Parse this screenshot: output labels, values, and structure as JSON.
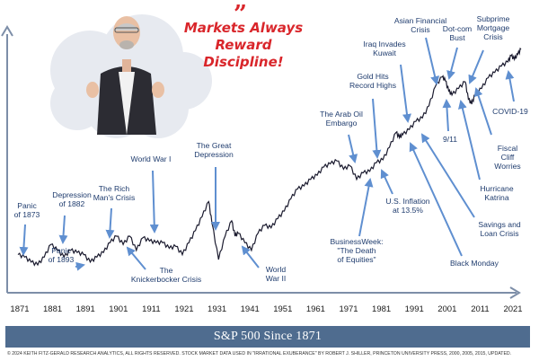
{
  "chart_data": {
    "type": "line",
    "title": "S&P 500 Since 1871",
    "yscale": "log",
    "x_ticks": [
      "1871",
      "1881",
      "1891",
      "1901",
      "1911",
      "1921",
      "1931",
      "1941",
      "1951",
      "1961",
      "1971",
      "1981",
      "1991",
      "2001",
      "2011",
      "2021"
    ],
    "series": [
      {
        "x": [
          1871,
          1873,
          1875,
          1877,
          1879,
          1881,
          1883,
          1885,
          1887,
          1889,
          1891,
          1893,
          1895,
          1897,
          1899,
          1901,
          1903,
          1905,
          1907,
          1909,
          1911,
          1913,
          1915,
          1917,
          1919,
          1921,
          1923,
          1925,
          1927,
          1929,
          1930,
          1932,
          1934,
          1936,
          1937,
          1938,
          1940,
          1942,
          1944,
          1946,
          1948,
          1950,
          1952,
          1954,
          1956,
          1958,
          1960,
          1962,
          1964,
          1966,
          1968,
          1970,
          1972,
          1974,
          1976,
          1978,
          1980,
          1982,
          1984,
          1986,
          1987,
          1988,
          1990,
          1992,
          1994,
          1996,
          1998,
          2000,
          2001,
          2002,
          2003,
          2005,
          2007,
          2008,
          2009,
          2010,
          2012,
          2014,
          2016,
          2018,
          2020,
          2021,
          2022,
          2023,
          2024
        ],
        "values": [
          1.0,
          0.95,
          0.85,
          0.8,
          0.95,
          1.25,
          1.1,
          0.95,
          1.1,
          1.05,
          1.0,
          0.85,
          0.95,
          1.05,
          1.3,
          1.5,
          1.25,
          1.5,
          1.1,
          1.45,
          1.35,
          1.3,
          1.3,
          1.15,
          1.2,
          1.0,
          1.3,
          1.7,
          2.3,
          3.2,
          2.0,
          0.9,
          1.5,
          2.1,
          1.5,
          1.6,
          1.3,
          1.1,
          1.6,
          1.9,
          1.8,
          2.2,
          2.6,
          3.4,
          4.2,
          4.5,
          5.2,
          5.7,
          6.8,
          7.3,
          7.8,
          6.5,
          7.0,
          5.2,
          6.0,
          6.2,
          7.5,
          8.0,
          10.5,
          14.5,
          13.0,
          13.8,
          15.5,
          18.5,
          20.0,
          26.0,
          40.0,
          49.0,
          45.0,
          36.0,
          33.0,
          38.0,
          44.0,
          30.0,
          27.0,
          33.0,
          38.0,
          48.0,
          54.0,
          62.0,
          68.0,
          78.0,
          72.0,
          80.0,
          90.0
        ]
      }
    ],
    "annotations": [
      {
        "lines": [
          "Panic",
          "of 1873"
        ],
        "x": 1873
      },
      {
        "lines": [
          "Depression",
          "of 1882"
        ],
        "x": 1882
      },
      {
        "lines": [
          "Panic",
          "of 1893"
        ],
        "x": 1893
      },
      {
        "lines": [
          "The Rich",
          "Man's Crisis"
        ],
        "x": 1903
      },
      {
        "lines": [
          "The",
          "Knickerbocker Crisis"
        ],
        "x": 1907
      },
      {
        "lines": [
          "World War I"
        ],
        "x": 1914
      },
      {
        "lines": [
          "The Great",
          "Depression"
        ],
        "x": 1929
      },
      {
        "lines": [
          "World",
          "War II"
        ],
        "x": 1941
      },
      {
        "lines": [
          "The Arab Oil",
          "Embargo"
        ],
        "x": 1973
      },
      {
        "lines": [
          "BusinessWeek:",
          "\"The Death",
          "of Equities\""
        ],
        "x": 1979
      },
      {
        "lines": [
          "Gold Hits",
          "Record Highs"
        ],
        "x": 1980
      },
      {
        "lines": [
          "U.S. Inflation",
          "at 13.5%"
        ],
        "x": 1980
      },
      {
        "lines": [
          "Iraq Invades",
          "Kuwait"
        ],
        "x": 1990
      },
      {
        "lines": [
          "Black Monday"
        ],
        "x": 1987
      },
      {
        "lines": [
          "Savings and",
          "Loan Crisis"
        ],
        "x": 1989
      },
      {
        "lines": [
          "Asian Financial",
          "Crisis"
        ],
        "x": 1997
      },
      {
        "lines": [
          "Dot-com",
          "Bust"
        ],
        "x": 2000
      },
      {
        "lines": [
          "9/11"
        ],
        "x": 2001
      },
      {
        "lines": [
          "Hurricane",
          "Katrina"
        ],
        "x": 2005
      },
      {
        "lines": [
          "Subprime",
          "Mortgage",
          "Crisis"
        ],
        "x": 2008
      },
      {
        "lines": [
          "Fiscal",
          "Cliff",
          "Worries"
        ],
        "x": 2012
      },
      {
        "lines": [
          "COVID-19"
        ],
        "x": 2020
      }
    ]
  },
  "headline": {
    "quote_mark": "”",
    "line1": "Markets Always",
    "line2": "Reward Discipline!"
  },
  "banner_title": "S&P 500 Since 1871",
  "footer": "© 2024 KEITH FITZ-GERALD RESEARCH ANALYTICS, ALL RIGHTS RESERVED. STOCK MARKET DATA USED IN \"IRRATIONAL EXUBERANCE\" BY ROBERT J. SHILLER, PRINCETON UNIVERSITY PRESS, 2000, 2005, 2015, UPDATED.",
  "colors": {
    "line": "#1a1a2e",
    "axis": "#7d8ea8",
    "annotation_text": "#1f3c6e",
    "arrow": "#5f8fd0",
    "banner": "#4f6c8f",
    "quote": "#d9262b"
  }
}
